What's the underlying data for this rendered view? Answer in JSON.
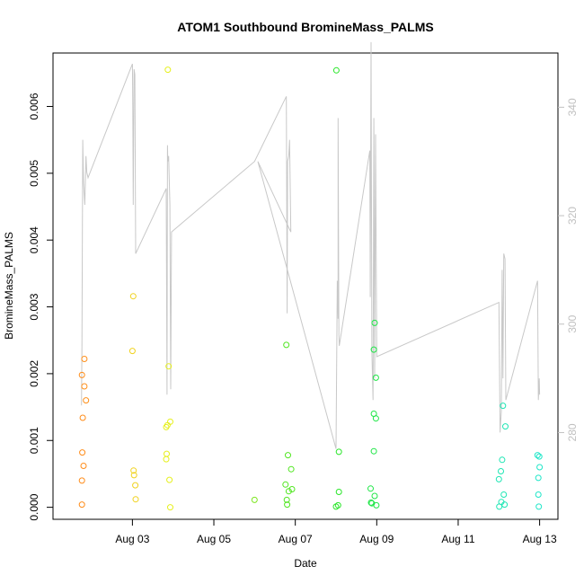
{
  "chart_data": {
    "type": "scatter",
    "title": "ATOM1 Southbound BromineMass_PALMS",
    "xlabel": "Date",
    "ylabel": "BromineMass_PALMS",
    "x_ticks": [
      "Aug 03",
      "Aug 05",
      "Aug 07",
      "Aug 09",
      "Aug 11",
      "Aug 13"
    ],
    "x_tick_days": [
      3,
      5,
      7,
      9,
      11,
      13
    ],
    "xlim": [
      1.05,
      13.45
    ],
    "ylim": [
      -0.00018,
      0.0068
    ],
    "y_ticks": [
      "0.000",
      "0.001",
      "0.002",
      "0.003",
      "0.004",
      "0.005",
      "0.006"
    ],
    "y_tick_values": [
      0,
      0.001,
      0.002,
      0.003,
      0.004,
      0.005,
      0.006
    ],
    "y2lim": [
      264,
      350
    ],
    "y2_ticks": [
      "280",
      "300",
      "320",
      "340"
    ],
    "y2_tick_values": [
      280,
      300,
      320,
      340
    ],
    "colors": {
      "line": "#c8c8c8",
      "right_axis": "#c0c0c0"
    },
    "points": [
      {
        "x": 1.76,
        "y": 0.00198,
        "color": "#ff8c19"
      },
      {
        "x": 1.78,
        "y": 0.00134,
        "color": "#ff8c19"
      },
      {
        "x": 1.77,
        "y": 0.00082,
        "color": "#ff8c19"
      },
      {
        "x": 1.76,
        "y": 0.0004,
        "color": "#ff8c19"
      },
      {
        "x": 1.76,
        "y": 4e-05,
        "color": "#ff8c19"
      },
      {
        "x": 1.8,
        "y": 0.00062,
        "color": "#ff8c19"
      },
      {
        "x": 1.82,
        "y": 0.00222,
        "color": "#ff8f1a"
      },
      {
        "x": 1.82,
        "y": 0.00181,
        "color": "#ff8f1a"
      },
      {
        "x": 1.86,
        "y": 0.0016,
        "color": "#ff901a"
      },
      {
        "x": 3.0,
        "y": 0.00234,
        "color": "#f0d21e"
      },
      {
        "x": 3.02,
        "y": 0.00316,
        "color": "#f0d21e"
      },
      {
        "x": 3.03,
        "y": 0.00055,
        "color": "#f0d21e"
      },
      {
        "x": 3.04,
        "y": 0.00048,
        "color": "#f0d21e"
      },
      {
        "x": 3.07,
        "y": 0.00033,
        "color": "#f0d21e"
      },
      {
        "x": 3.08,
        "y": 0.00012,
        "color": "#f0d21e"
      },
      {
        "x": 3.87,
        "y": 0.00655,
        "color": "#e6f01e"
      },
      {
        "x": 3.83,
        "y": 0.0012,
        "color": "#e6f01e"
      },
      {
        "x": 3.86,
        "y": 0.00123,
        "color": "#e6f01e"
      },
      {
        "x": 3.84,
        "y": 0.0008,
        "color": "#e6f01e"
      },
      {
        "x": 3.83,
        "y": 0.00072,
        "color": "#e6f01e"
      },
      {
        "x": 3.89,
        "y": 0.00211,
        "color": "#e6f01e"
      },
      {
        "x": 3.93,
        "y": 0.00128,
        "color": "#e6f01e"
      },
      {
        "x": 3.91,
        "y": 0.00041,
        "color": "#e6f01e"
      },
      {
        "x": 3.93,
        "y": 0.0,
        "color": "#e6f01e"
      },
      {
        "x": 6.0,
        "y": 0.00011,
        "color": "#7ce61e"
      },
      {
        "x": 6.78,
        "y": 0.00243,
        "color": "#50e620"
      },
      {
        "x": 6.76,
        "y": 0.00034,
        "color": "#50e620"
      },
      {
        "x": 6.79,
        "y": 0.00011,
        "color": "#50e620"
      },
      {
        "x": 6.8,
        "y": 4e-05,
        "color": "#50e620"
      },
      {
        "x": 6.82,
        "y": 0.00078,
        "color": "#50e620"
      },
      {
        "x": 6.84,
        "y": 0.00024,
        "color": "#50e620"
      },
      {
        "x": 6.9,
        "y": 0.00057,
        "color": "#50e620"
      },
      {
        "x": 6.92,
        "y": 0.00027,
        "color": "#50e620"
      },
      {
        "x": 8.01,
        "y": 0.00654,
        "color": "#28e628"
      },
      {
        "x": 8.0,
        "y": 1e-05,
        "color": "#28e628"
      },
      {
        "x": 8.05,
        "y": 3e-05,
        "color": "#28e628"
      },
      {
        "x": 8.07,
        "y": 0.00083,
        "color": "#28e628"
      },
      {
        "x": 8.07,
        "y": 0.00023,
        "color": "#28e628"
      },
      {
        "x": 8.85,
        "y": 0.00028,
        "color": "#1ee646"
      },
      {
        "x": 8.86,
        "y": 7e-05,
        "color": "#1ee646"
      },
      {
        "x": 8.88,
        "y": 6e-05,
        "color": "#1ee646"
      },
      {
        "x": 8.93,
        "y": 0.00236,
        "color": "#1ee646"
      },
      {
        "x": 8.93,
        "y": 0.00084,
        "color": "#1ee646"
      },
      {
        "x": 8.93,
        "y": 0.0014,
        "color": "#1ee646"
      },
      {
        "x": 8.95,
        "y": 0.00276,
        "color": "#1ee646"
      },
      {
        "x": 8.95,
        "y": 0.00017,
        "color": "#1ee646"
      },
      {
        "x": 8.98,
        "y": 0.00194,
        "color": "#1ee646"
      },
      {
        "x": 8.98,
        "y": 0.00133,
        "color": "#1ee646"
      },
      {
        "x": 8.99,
        "y": 3e-05,
        "color": "#1ee646"
      },
      {
        "x": 12.0,
        "y": 0.00042,
        "color": "#1ee6b4"
      },
      {
        "x": 12.01,
        "y": 1e-05,
        "color": "#1ee6b4"
      },
      {
        "x": 12.05,
        "y": 0.00054,
        "color": "#1ee6b4"
      },
      {
        "x": 12.06,
        "y": 8e-05,
        "color": "#1ee6b4"
      },
      {
        "x": 12.08,
        "y": 0.00071,
        "color": "#1ee6b4"
      },
      {
        "x": 12.1,
        "y": 0.00152,
        "color": "#1ee6b4"
      },
      {
        "x": 12.12,
        "y": 0.00019,
        "color": "#1ee6b4"
      },
      {
        "x": 12.14,
        "y": 4e-05,
        "color": "#1ee6b4"
      },
      {
        "x": 12.16,
        "y": 0.00121,
        "color": "#1ee6b4"
      },
      {
        "x": 12.95,
        "y": 0.00078,
        "color": "#1ee6c8"
      },
      {
        "x": 12.97,
        "y": 0.00044,
        "color": "#1ee6c8"
      },
      {
        "x": 12.97,
        "y": 0.00019,
        "color": "#1ee6c8"
      },
      {
        "x": 12.98,
        "y": 1e-05,
        "color": "#1ee6c8"
      },
      {
        "x": 12.99,
        "y": 0.00076,
        "color": "#1ee6c8"
      },
      {
        "x": 13.0,
        "y": 0.0006,
        "color": "#1ee6c8"
      }
    ],
    "line": [
      [
        1.75,
        285
      ],
      [
        1.76,
        296
      ],
      [
        1.78,
        334
      ],
      [
        1.8,
        326
      ],
      [
        1.83,
        322
      ],
      [
        1.86,
        331
      ],
      [
        1.88,
        328
      ],
      [
        1.91,
        327
      ],
      [
        3.0,
        348
      ],
      [
        3.01,
        340
      ],
      [
        3.02,
        322
      ],
      [
        3.04,
        347
      ],
      [
        3.06,
        346
      ],
      [
        3.08,
        313
      ],
      [
        3.83,
        325
      ],
      [
        3.85,
        287
      ],
      [
        3.86,
        333
      ],
      [
        3.87,
        330
      ],
      [
        3.89,
        331
      ],
      [
        3.92,
        322
      ],
      [
        3.94,
        288
      ],
      [
        3.96,
        317
      ],
      [
        6.0,
        330
      ],
      [
        6.78,
        342
      ],
      [
        6.8,
        302
      ],
      [
        6.81,
        330
      ],
      [
        6.84,
        331
      ],
      [
        6.86,
        334
      ],
      [
        6.89,
        317
      ],
      [
        6.08,
        330
      ],
      [
        8.0,
        277
      ],
      [
        8.03,
        308
      ],
      [
        8.05,
        301
      ],
      [
        8.05,
        338
      ],
      [
        8.07,
        298
      ],
      [
        8.08,
        296
      ],
      [
        8.83,
        332
      ],
      [
        8.84,
        305
      ],
      [
        8.86,
        352
      ],
      [
        8.88,
        295
      ],
      [
        8.91,
        286
      ],
      [
        8.93,
        338
      ],
      [
        8.95,
        290
      ],
      [
        8.97,
        335
      ],
      [
        9.0,
        294
      ],
      [
        12.0,
        304
      ],
      [
        12.03,
        280
      ],
      [
        12.06,
        284
      ],
      [
        12.08,
        310
      ],
      [
        12.1,
        290
      ],
      [
        12.12,
        313
      ],
      [
        12.15,
        312
      ],
      [
        12.17,
        286
      ],
      [
        12.95,
        308
      ],
      [
        12.97,
        286
      ],
      [
        12.99,
        290
      ],
      [
        13.0,
        287
      ]
    ]
  }
}
